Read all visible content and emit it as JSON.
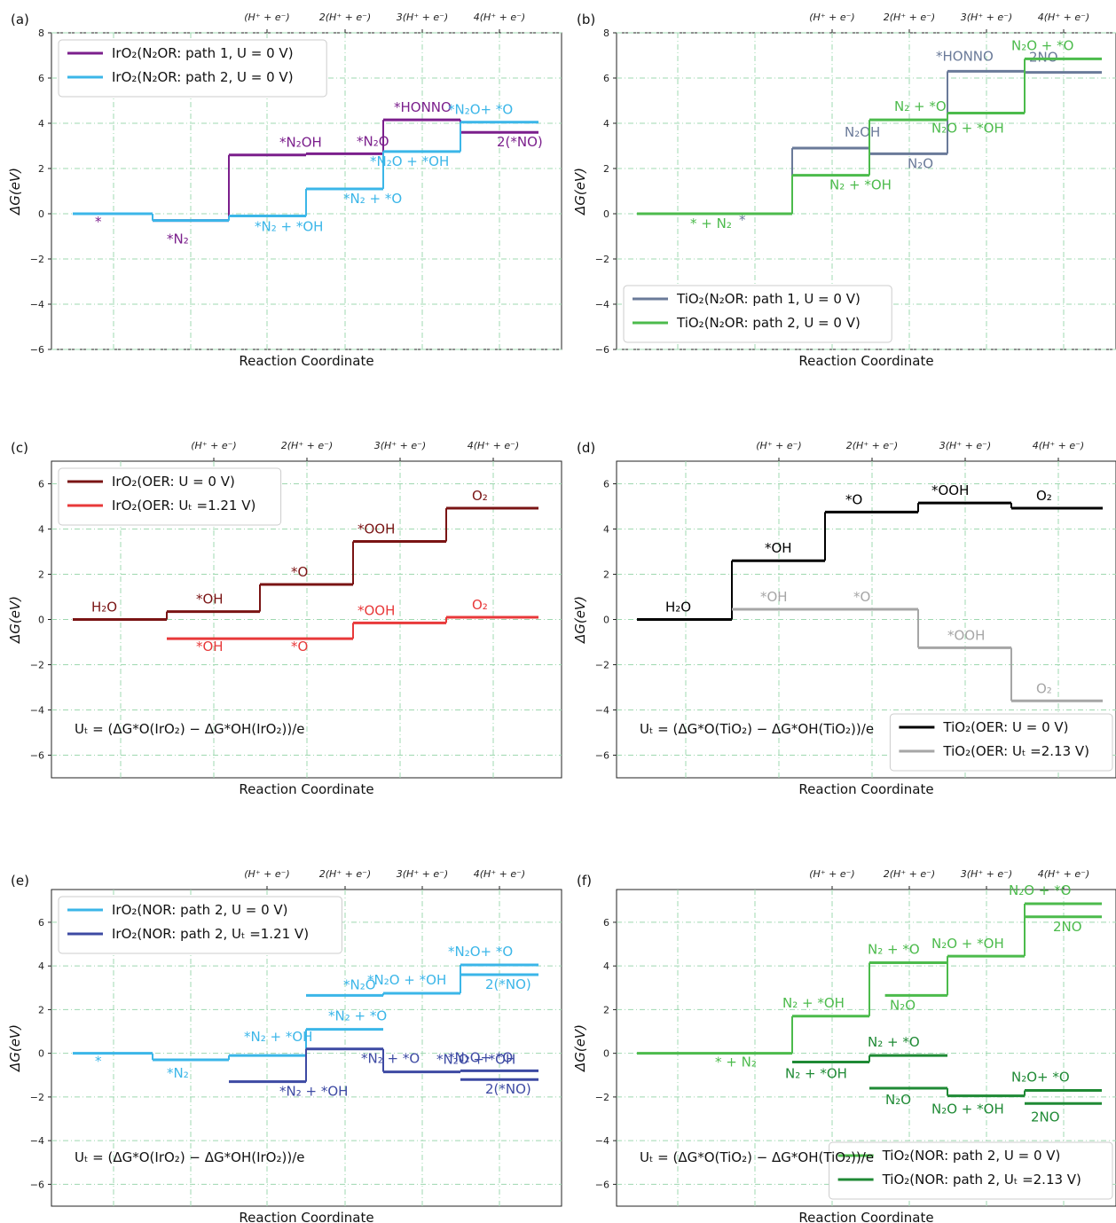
{
  "figure": {
    "top_ticks": [
      "(H⁺ + e⁻)",
      "2(H⁺ + e⁻)",
      "3(H⁺ + e⁻)",
      "4(H⁺ + e⁻)"
    ],
    "xlabel": "Reaction Coordinate",
    "ylabel": "ΔG(eV)"
  },
  "chart_data": [
    {
      "panel": "(a)",
      "type": "line",
      "ylim": [
        -6,
        8
      ],
      "yticks": [
        -6,
        -4,
        -2,
        0,
        2,
        4,
        6,
        8
      ],
      "grid": true,
      "legend": "top-left",
      "series": [
        {
          "name": "IrO₂(N₂OR: path 1, U = 0 V)",
          "color": "#7b1f8c",
          "steps": [
            {
              "x0": 0,
              "x1": 1,
              "y": 0,
              "label": "*"
            },
            {
              "x0": 1,
              "x1": 2,
              "y": -0.3,
              "label": "*N₂"
            },
            {
              "x0": 2,
              "x1": 3,
              "y": 2.6,
              "label": "*N₂OH"
            },
            {
              "x0": 3,
              "x1": 4,
              "y": 2.65,
              "label": "*N₂O"
            },
            {
              "x0": 4,
              "x1": 5,
              "y": 4.15,
              "label": "*HONNO"
            },
            {
              "x0": 5,
              "x1": 6,
              "y": 3.6,
              "label": "2(*NO)"
            }
          ]
        },
        {
          "name": "IrO₂(N₂OR: path 2, U = 0 V)",
          "color": "#3bb6e8",
          "steps": [
            {
              "x0": 0,
              "x1": 1,
              "y": 0,
              "label": ""
            },
            {
              "x0": 1,
              "x1": 2,
              "y": -0.3,
              "label": ""
            },
            {
              "x0": 2,
              "x1": 3,
              "y": -0.1,
              "label": "*N₂ + *OH"
            },
            {
              "x0": 3,
              "x1": 4,
              "y": 1.1,
              "label": "*N₂ + *O"
            },
            {
              "x0": 4,
              "x1": 5,
              "y": 2.75,
              "label": "*N₂O + *OH"
            },
            {
              "x0": 5,
              "x1": 6,
              "y": 4.05,
              "label": "*N₂O+ *O"
            }
          ]
        }
      ]
    },
    {
      "panel": "(b)",
      "type": "line",
      "ylim": [
        -6,
        8
      ],
      "yticks": [
        -6,
        -4,
        -2,
        0,
        2,
        4,
        6,
        8
      ],
      "grid": true,
      "legend": "bottom-left",
      "series": [
        {
          "name": "TiO₂(N₂OR: path 1, U = 0 V)",
          "color": "#6a7a99",
          "steps": [
            {
              "x0": 0,
              "x1": 2,
              "y": 0,
              "label": "*"
            },
            {
              "x0": 2,
              "x1": 3,
              "y": 2.9,
              "label": "N₂OH"
            },
            {
              "x0": 3,
              "x1": 4,
              "y": 2.65,
              "label": "N₂O"
            },
            {
              "x0": 4,
              "x1": 5,
              "y": 6.3,
              "label": "*HONNO"
            },
            {
              "x0": 5,
              "x1": 6.2,
              "y": 6.25,
              "label": "2NO"
            }
          ]
        },
        {
          "name": "TiO₂(N₂OR: path 2, U = 0 V)",
          "color": "#4cbb4c",
          "steps": [
            {
              "x0": 0,
              "x1": 2,
              "y": 0,
              "label": "* + N₂"
            },
            {
              "x0": 2,
              "x1": 3,
              "y": 1.7,
              "label": "N₂ + *OH"
            },
            {
              "x0": 3,
              "x1": 4,
              "y": 4.15,
              "label": "N₂ + *O"
            },
            {
              "x0": 4,
              "x1": 5,
              "y": 4.45,
              "label": "N₂O + *OH"
            },
            {
              "x0": 5,
              "x1": 6.2,
              "y": 6.85,
              "label": "N₂O + *O"
            }
          ]
        }
      ]
    },
    {
      "panel": "(c)",
      "type": "line",
      "ylim": [
        -7,
        7
      ],
      "yticks": [
        -6,
        -4,
        -2,
        0,
        2,
        4,
        6
      ],
      "grid": true,
      "legend": "top-left",
      "formula": "Uₜ = (ΔG*O(IrO₂) − ΔG*OH(IrO₂))/e",
      "series": [
        {
          "name": "IrO₂(OER: U = 0 V)",
          "color": "#7a1414",
          "steps": [
            {
              "x0": 0,
              "x1": 1,
              "y": 0,
              "label": "H₂O"
            },
            {
              "x0": 1,
              "x1": 2,
              "y": 0.35,
              "label": "*OH"
            },
            {
              "x0": 2,
              "x1": 3,
              "y": 1.55,
              "label": "*O"
            },
            {
              "x0": 3,
              "x1": 4,
              "y": 3.45,
              "label": "*OOH"
            },
            {
              "x0": 4,
              "x1": 5,
              "y": 4.92,
              "label": "O₂"
            }
          ]
        },
        {
          "name": "IrO₂(OER: Uₜ =1.21 V)",
          "color": "#e8393a",
          "steps": [
            {
              "x0": 1,
              "x1": 2,
              "y": -0.85,
              "label": "*OH"
            },
            {
              "x0": 2,
              "x1": 3,
              "y": -0.85,
              "label": "*O"
            },
            {
              "x0": 3,
              "x1": 4,
              "y": -0.15,
              "label": "*OOH"
            },
            {
              "x0": 4,
              "x1": 5,
              "y": 0.1,
              "label": "O₂"
            }
          ]
        }
      ]
    },
    {
      "panel": "(d)",
      "type": "line",
      "ylim": [
        -7,
        7
      ],
      "yticks": [
        -6,
        -4,
        -2,
        0,
        2,
        4,
        6
      ],
      "grid": true,
      "legend": "bottom-right",
      "formula": "Uₜ = (ΔG*O(TiO₂) − ΔG*OH(TiO₂))/e",
      "series": [
        {
          "name": "TiO₂(OER: U = 0 V)",
          "color": "#000000",
          "steps": [
            {
              "x0": 0,
              "x1": 1,
              "y": 0,
              "label": "H₂O"
            },
            {
              "x0": 1,
              "x1": 2,
              "y": 2.6,
              "label": "*OH"
            },
            {
              "x0": 2,
              "x1": 3,
              "y": 4.75,
              "label": "*O"
            },
            {
              "x0": 3,
              "x1": 4,
              "y": 5.15,
              "label": "*OOH"
            },
            {
              "x0": 4,
              "x1": 5,
              "y": 4.92,
              "label": "O₂"
            }
          ]
        },
        {
          "name": "TiO₂(OER: Uₜ =2.13 V)",
          "color": "#a6a6a6",
          "steps": [
            {
              "x0": 1,
              "x1": 2,
              "y": 0.45,
              "label": "*OH"
            },
            {
              "x0": 2,
              "x1": 3,
              "y": 0.45,
              "label": "*O"
            },
            {
              "x0": 3,
              "x1": 4,
              "y": -1.25,
              "label": "*OOH"
            },
            {
              "x0": 4,
              "x1": 5,
              "y": -3.6,
              "label": "O₂"
            }
          ]
        }
      ]
    },
    {
      "panel": "(e)",
      "type": "line",
      "ylim": [
        -7,
        7.5
      ],
      "yticks": [
        -6,
        -4,
        -2,
        0,
        2,
        4,
        6
      ],
      "grid": true,
      "legend": "top-left",
      "formula": "Uₜ = (ΔG*O(IrO₂) − ΔG*OH(IrO₂))/e",
      "series": [
        {
          "name": "IrO₂(NOR: path 2, U = 0 V)",
          "color": "#3bb6e8",
          "steps": [
            {
              "x0": 0,
              "x1": 1,
              "y": 0,
              "label": "*"
            },
            {
              "x0": 1,
              "x1": 2,
              "y": -0.3,
              "label": "*N₂"
            },
            {
              "x0": 2,
              "x1": 3,
              "y": -0.1,
              "label": "*N₂ + *OH"
            },
            {
              "x0": 3,
              "x1": 4,
              "y": 1.1,
              "label": "*N₂ + *O"
            },
            {
              "x0": 3,
              "x1": 4,
              "y": 2.65,
              "label": "*N₂O"
            },
            {
              "x0": 4,
              "x1": 5,
              "y": 2.75,
              "label": "*N₂O + *OH"
            },
            {
              "x0": 5,
              "x1": 6,
              "y": 4.05,
              "label": "*N₂O+ *O"
            },
            {
              "x0": 5,
              "x1": 6,
              "y": 3.6,
              "label": "2(*NO)"
            }
          ]
        },
        {
          "name": "IrO₂(NOR: path 2, Uₜ =1.21 V)",
          "color": "#3d4aa3",
          "steps": [
            {
              "x0": 2,
              "x1": 3,
              "y": -1.3,
              "label": "*N₂ + *OH"
            },
            {
              "x0": 3,
              "x1": 4,
              "y": 0.2,
              "label": "*N₂ + *O"
            },
            {
              "x0": 4,
              "x1": 5,
              "y": -0.85,
              "label": "*N₂O + *OH"
            },
            {
              "x0": 5,
              "x1": 6,
              "y": -0.8,
              "label": "*N₂O+ *O"
            },
            {
              "x0": 5,
              "x1": 6,
              "y": -1.2,
              "label": "2(*NO)"
            }
          ]
        }
      ]
    },
    {
      "panel": "(f)",
      "type": "line",
      "ylim": [
        -7,
        7.5
      ],
      "yticks": [
        -6,
        -4,
        -2,
        0,
        2,
        4,
        6
      ],
      "grid": true,
      "legend": "bottom-right",
      "formula": "Uₜ = (ΔG*O(TiO₂) − ΔG*OH(TiO₂))/e",
      "series": [
        {
          "name": "TiO₂(NOR: path 2, U = 0 V)",
          "color": "#4cbb4c",
          "steps": [
            {
              "x0": 0,
              "x1": 2,
              "y": 0,
              "label": "* + N₂"
            },
            {
              "x0": 2,
              "x1": 3,
              "y": 1.7,
              "label": "N₂ + *OH"
            },
            {
              "x0": 3,
              "x1": 4,
              "y": 4.15,
              "label": "N₂ + *O"
            },
            {
              "x0": 3.2,
              "x1": 4,
              "y": 2.65,
              "label": "N₂O"
            },
            {
              "x0": 4,
              "x1": 5,
              "y": 4.45,
              "label": "N₂O + *OH"
            },
            {
              "x0": 5,
              "x1": 6.2,
              "y": 6.85,
              "label": "N₂O + *O"
            },
            {
              "x0": 5,
              "x1": 6.2,
              "y": 6.25,
              "label": "2NO"
            }
          ]
        },
        {
          "name": "TiO₂(NOR: path 2, Uₜ =2.13 V)",
          "color": "#1f8a35",
          "steps": [
            {
              "x0": 2,
              "x1": 3,
              "y": -0.4,
              "label": "N₂ + *OH"
            },
            {
              "x0": 3,
              "x1": 4,
              "y": -0.1,
              "label": "N₂ + *O"
            },
            {
              "x0": 3,
              "x1": 4,
              "y": -1.6,
              "label": "N₂O"
            },
            {
              "x0": 4,
              "x1": 5,
              "y": -1.95,
              "label": "N₂O + *OH"
            },
            {
              "x0": 5,
              "x1": 6.2,
              "y": -1.7,
              "label": "N₂O+ *O"
            },
            {
              "x0": 5,
              "x1": 6.2,
              "y": -2.3,
              "label": "2NO"
            }
          ]
        }
      ]
    }
  ]
}
